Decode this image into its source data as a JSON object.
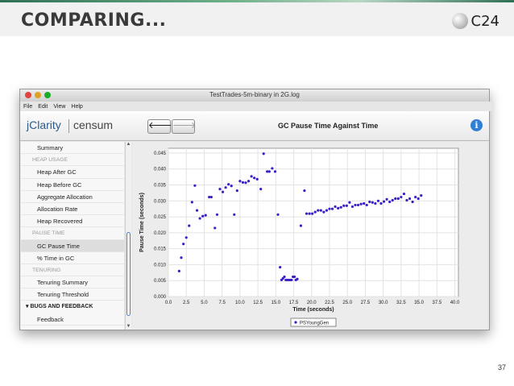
{
  "slide": {
    "title": "COMPARING...",
    "logo_text": "C24",
    "page_number": "37"
  },
  "window": {
    "title": "TestTrades-5m-binary in 2G.log",
    "menu": [
      "File",
      "Edit",
      "View",
      "Help"
    ],
    "brand": "jClarity",
    "product": "censum",
    "back_icon": "back-arrow-icon",
    "forward_icon": "forward-arrow-icon",
    "info_icon": "info-icon",
    "traffic_light_colors": [
      "#e0443e",
      "#dea123",
      "#1aab29"
    ]
  },
  "sidebar": {
    "items": [
      {
        "kind": "item",
        "label": "Summary"
      },
      {
        "kind": "section",
        "label": "HEAP USAGE"
      },
      {
        "kind": "item",
        "label": "Heap After GC"
      },
      {
        "kind": "item",
        "label": "Heap Before GC"
      },
      {
        "kind": "item",
        "label": "Aggregate Allocation"
      },
      {
        "kind": "item",
        "label": "Allocation Rate"
      },
      {
        "kind": "item",
        "label": "Heap Recovered"
      },
      {
        "kind": "section",
        "label": "PAUSE TIME"
      },
      {
        "kind": "item",
        "label": "GC Pause Time",
        "selected": true
      },
      {
        "kind": "item",
        "label": "% Time in GC"
      },
      {
        "kind": "section",
        "label": "TENURING"
      },
      {
        "kind": "item",
        "label": "Tenuring Summary"
      },
      {
        "kind": "item",
        "label": "Tenuring Threshold"
      },
      {
        "kind": "group",
        "label": "BUGS AND FEEDBACK"
      },
      {
        "kind": "item",
        "label": "Feedback"
      }
    ]
  },
  "chart_data": {
    "type": "scatter",
    "title": "GC Pause Time Against Time",
    "xlabel": "Time (seconds)",
    "ylabel": "Pause Time (seconds)",
    "xlim": [
      0,
      40.5
    ],
    "ylim": [
      0,
      0.0465
    ],
    "xticks": [
      "0.0",
      "2.5",
      "5.0",
      "7.5",
      "10.0",
      "12.5",
      "15.0",
      "17.5",
      "20.0",
      "22.5",
      "25.0",
      "27.5",
      "30.0",
      "32.5",
      "35.0",
      "37.5",
      "40.0"
    ],
    "yticks": [
      "0.000",
      "0.005",
      "0.010",
      "0.015",
      "0.020",
      "0.025",
      "0.030",
      "0.035",
      "0.040",
      "0.045"
    ],
    "grid": true,
    "legend_position": "bottom-center",
    "series_color": "#3b1fc6",
    "series": [
      {
        "name": "PSYoungGen",
        "points": [
          [
            1.5,
            0.008
          ],
          [
            1.8,
            0.0122
          ],
          [
            2.1,
            0.0165
          ],
          [
            2.5,
            0.0185
          ],
          [
            2.9,
            0.0222
          ],
          [
            3.3,
            0.0296
          ],
          [
            3.7,
            0.0348
          ],
          [
            4.0,
            0.027
          ],
          [
            4.4,
            0.0245
          ],
          [
            4.8,
            0.0252
          ],
          [
            5.2,
            0.0255
          ],
          [
            5.7,
            0.0312
          ],
          [
            6.0,
            0.0312
          ],
          [
            6.5,
            0.0215
          ],
          [
            6.8,
            0.0257
          ],
          [
            7.2,
            0.0337
          ],
          [
            7.6,
            0.0328
          ],
          [
            8.0,
            0.0342
          ],
          [
            8.4,
            0.0352
          ],
          [
            8.8,
            0.0347
          ],
          [
            9.2,
            0.0257
          ],
          [
            9.6,
            0.0332
          ],
          [
            10.0,
            0.0362
          ],
          [
            10.4,
            0.0358
          ],
          [
            10.8,
            0.0357
          ],
          [
            11.2,
            0.0362
          ],
          [
            11.6,
            0.0377
          ],
          [
            12.0,
            0.0372
          ],
          [
            12.4,
            0.0368
          ],
          [
            12.9,
            0.0337
          ],
          [
            13.3,
            0.0448
          ],
          [
            13.8,
            0.0392
          ],
          [
            14.1,
            0.0392
          ],
          [
            14.5,
            0.0402
          ],
          [
            14.9,
            0.0392
          ],
          [
            15.3,
            0.0257
          ],
          [
            15.6,
            0.0092
          ],
          [
            15.8,
            0.0052
          ],
          [
            16.0,
            0.0057
          ],
          [
            16.2,
            0.0062
          ],
          [
            16.4,
            0.0052
          ],
          [
            16.6,
            0.0052
          ],
          [
            16.8,
            0.0052
          ],
          [
            17.0,
            0.0052
          ],
          [
            17.2,
            0.0052
          ],
          [
            17.4,
            0.0062
          ],
          [
            17.6,
            0.0062
          ],
          [
            17.8,
            0.0052
          ],
          [
            18.0,
            0.0055
          ],
          [
            18.5,
            0.0222
          ],
          [
            19.0,
            0.0332
          ],
          [
            19.3,
            0.026
          ],
          [
            19.7,
            0.026
          ],
          [
            20.1,
            0.026
          ],
          [
            20.5,
            0.0265
          ],
          [
            20.9,
            0.027
          ],
          [
            21.3,
            0.027
          ],
          [
            21.7,
            0.0265
          ],
          [
            22.1,
            0.027
          ],
          [
            22.5,
            0.0275
          ],
          [
            22.9,
            0.0275
          ],
          [
            23.3,
            0.0282
          ],
          [
            23.7,
            0.0277
          ],
          [
            24.1,
            0.028
          ],
          [
            24.5,
            0.0285
          ],
          [
            24.9,
            0.0285
          ],
          [
            25.3,
            0.0295
          ],
          [
            25.7,
            0.0282
          ],
          [
            26.1,
            0.0287
          ],
          [
            26.5,
            0.0287
          ],
          [
            26.9,
            0.029
          ],
          [
            27.3,
            0.0292
          ],
          [
            27.7,
            0.0287
          ],
          [
            28.1,
            0.0297
          ],
          [
            28.5,
            0.0295
          ],
          [
            28.9,
            0.0292
          ],
          [
            29.3,
            0.03
          ],
          [
            29.7,
            0.0292
          ],
          [
            30.1,
            0.0298
          ],
          [
            30.5,
            0.0305
          ],
          [
            30.9,
            0.0297
          ],
          [
            31.3,
            0.0302
          ],
          [
            31.7,
            0.0307
          ],
          [
            32.1,
            0.0307
          ],
          [
            32.5,
            0.0312
          ],
          [
            32.9,
            0.0322
          ],
          [
            33.3,
            0.0302
          ],
          [
            33.7,
            0.0307
          ],
          [
            34.1,
            0.0297
          ],
          [
            34.5,
            0.0312
          ],
          [
            34.9,
            0.0307
          ],
          [
            35.3,
            0.0317
          ]
        ]
      }
    ]
  }
}
